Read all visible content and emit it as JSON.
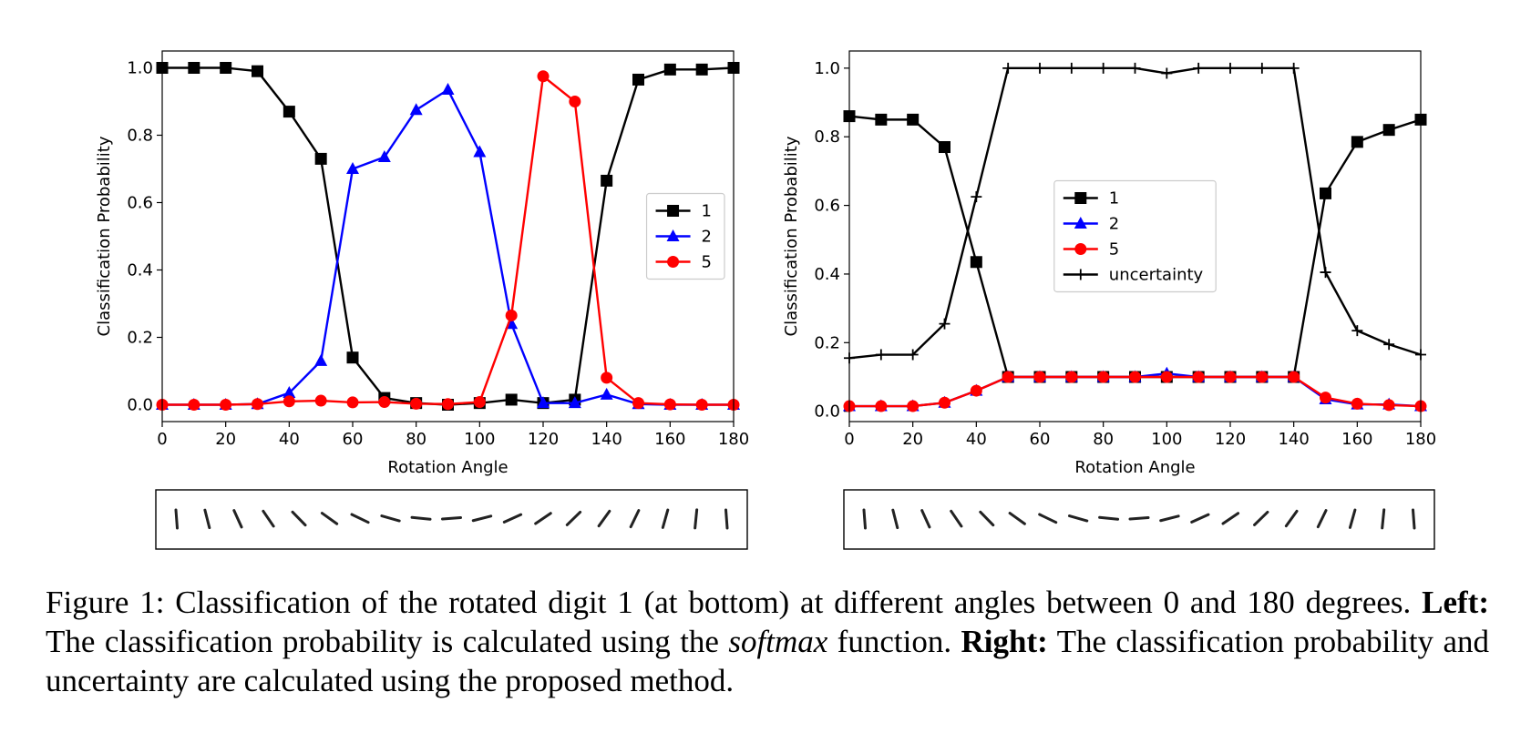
{
  "chart_data": [
    {
      "type": "line",
      "xlabel": "Rotation Angle",
      "ylabel": "Classification Probability",
      "x": [
        0,
        10,
        20,
        30,
        40,
        50,
        60,
        70,
        80,
        90,
        100,
        110,
        120,
        130,
        140,
        150,
        160,
        170,
        180
      ],
      "xlim": [
        0,
        180
      ],
      "xticks": [
        0,
        20,
        40,
        60,
        80,
        100,
        120,
        140,
        160,
        180
      ],
      "ylim": [
        -0.05,
        1.05
      ],
      "yticks": [
        {
          "value": 0,
          "label": "0.0"
        },
        0.2,
        0.4,
        0.6,
        0.8,
        {
          "value": 1,
          "label": "1.0"
        }
      ],
      "legend": "center right",
      "series": [
        {
          "name": "1",
          "color": "#000000",
          "marker": "square",
          "values": [
            1.0,
            1.0,
            1.0,
            0.99,
            0.87,
            0.73,
            0.14,
            0.02,
            0.005,
            0.0,
            0.005,
            0.015,
            0.005,
            0.015,
            0.665,
            0.965,
            0.995,
            0.995,
            1.0
          ]
        },
        {
          "name": "2",
          "color": "#0000ff",
          "marker": "triangle",
          "values": [
            0,
            0,
            0,
            0.002,
            0.035,
            0.13,
            0.7,
            0.735,
            0.875,
            0.935,
            0.75,
            0.24,
            0.005,
            0.005,
            0.03,
            0.002,
            0,
            0,
            0
          ]
        },
        {
          "name": "5",
          "color": "#ff0000",
          "marker": "circle",
          "values": [
            0,
            0,
            0,
            0.002,
            0.01,
            0.012,
            0.007,
            0.008,
            0.003,
            0.002,
            0.008,
            0.265,
            0.975,
            0.9,
            0.08,
            0.005,
            0.001,
            0,
            0
          ]
        }
      ]
    },
    {
      "type": "line",
      "xlabel": "Rotation Angle",
      "ylabel": "Classification Probability",
      "x": [
        0,
        10,
        20,
        30,
        40,
        50,
        60,
        70,
        80,
        90,
        100,
        110,
        120,
        130,
        140,
        150,
        160,
        170,
        180
      ],
      "xlim": [
        0,
        180
      ],
      "xticks": [
        0,
        20,
        40,
        60,
        80,
        100,
        120,
        140,
        160,
        180
      ],
      "ylim": [
        -0.03,
        1.05
      ],
      "yticks": [
        {
          "value": 0,
          "label": "0.0"
        },
        0.2,
        0.4,
        0.6,
        0.8,
        {
          "value": 1,
          "label": "1.0"
        }
      ],
      "legend": "center",
      "series": [
        {
          "name": "1",
          "color": "#000000",
          "marker": "square",
          "values": [
            0.86,
            0.85,
            0.85,
            0.77,
            0.435,
            0.1,
            0.1,
            0.1,
            0.1,
            0.1,
            0.1,
            0.1,
            0.1,
            0.1,
            0.1,
            0.635,
            0.785,
            0.82,
            0.85
          ]
        },
        {
          "name": "2",
          "color": "#0000ff",
          "marker": "triangle",
          "values": [
            0.015,
            0.015,
            0.015,
            0.025,
            0.06,
            0.1,
            0.1,
            0.1,
            0.1,
            0.1,
            0.11,
            0.1,
            0.1,
            0.1,
            0.1,
            0.035,
            0.02,
            0.02,
            0.015
          ]
        },
        {
          "name": "5",
          "color": "#ff0000",
          "marker": "circle",
          "values": [
            0.015,
            0.015,
            0.015,
            0.025,
            0.06,
            0.1,
            0.1,
            0.1,
            0.1,
            0.1,
            0.1,
            0.1,
            0.1,
            0.1,
            0.1,
            0.04,
            0.022,
            0.018,
            0.015
          ]
        },
        {
          "name": "uncertainty",
          "color": "#000000",
          "marker": "plus",
          "values": [
            0.155,
            0.165,
            0.165,
            0.255,
            0.625,
            1.0,
            1.0,
            1.0,
            1.0,
            1.0,
            0.985,
            1.0,
            1.0,
            1.0,
            1.0,
            0.405,
            0.235,
            0.195,
            0.165
          ]
        }
      ]
    }
  ],
  "caption": {
    "label": "Figure 1:",
    "text": "  Classification of the rotated digit 1 (at bottom) at different angles between 0 and 180 degrees. ",
    "left_label": "Left:",
    "left_text": " The classification probability is calculated using the ",
    "left_emph": "softmax",
    "left_tail": " function. ",
    "right_label": "Right:",
    "right_text": " The classification probability and uncertainty are calculated using the proposed method."
  }
}
